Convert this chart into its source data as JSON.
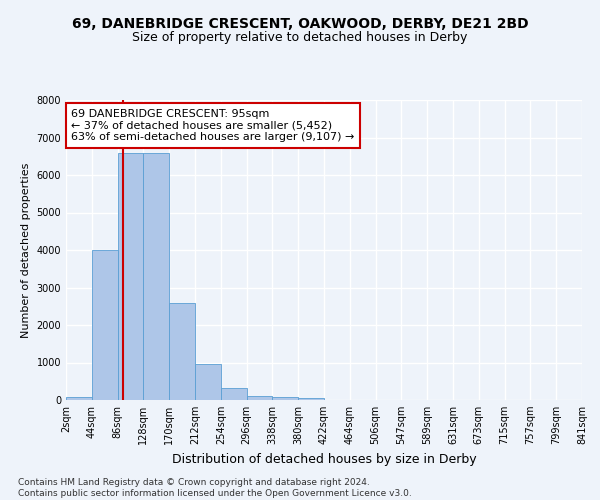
{
  "title_line1": "69, DANEBRIDGE CRESCENT, OAKWOOD, DERBY, DE21 2BD",
  "title_line2": "Size of property relative to detached houses in Derby",
  "xlabel": "Distribution of detached houses by size in Derby",
  "ylabel": "Number of detached properties",
  "bar_values": [
    70,
    4000,
    6600,
    6600,
    2600,
    950,
    320,
    110,
    70,
    50,
    0,
    0,
    0,
    0,
    0,
    0,
    0,
    0,
    0,
    0
  ],
  "bar_labels": [
    "2sqm",
    "44sqm",
    "86sqm",
    "128sqm",
    "170sqm",
    "212sqm",
    "254sqm",
    "296sqm",
    "338sqm",
    "380sqm",
    "422sqm",
    "464sqm",
    "506sqm",
    "547sqm",
    "589sqm",
    "631sqm",
    "673sqm",
    "715sqm",
    "757sqm",
    "799sqm",
    "841sqm"
  ],
  "ylim": [
    0,
    8000
  ],
  "yticks": [
    0,
    1000,
    2000,
    3000,
    4000,
    5000,
    6000,
    7000,
    8000
  ],
  "bar_color": "#aec6e8",
  "bar_edge_color": "#5a9fd4",
  "vline_color": "#cc0000",
  "annotation_text": "69 DANEBRIDGE CRESCENT: 95sqm\n← 37% of detached houses are smaller (5,452)\n63% of semi-detached houses are larger (9,107) →",
  "annotation_box_color": "#ffffff",
  "annotation_box_edge": "#cc0000",
  "bg_color": "#eef3fa",
  "plot_bg_color": "#eef3fa",
  "grid_color": "#ffffff",
  "footnote": "Contains HM Land Registry data © Crown copyright and database right 2024.\nContains public sector information licensed under the Open Government Licence v3.0.",
  "title_fontsize": 10,
  "subtitle_fontsize": 9,
  "xlabel_fontsize": 9,
  "ylabel_fontsize": 8,
  "tick_fontsize": 7,
  "annotation_fontsize": 8,
  "footnote_fontsize": 6.5
}
